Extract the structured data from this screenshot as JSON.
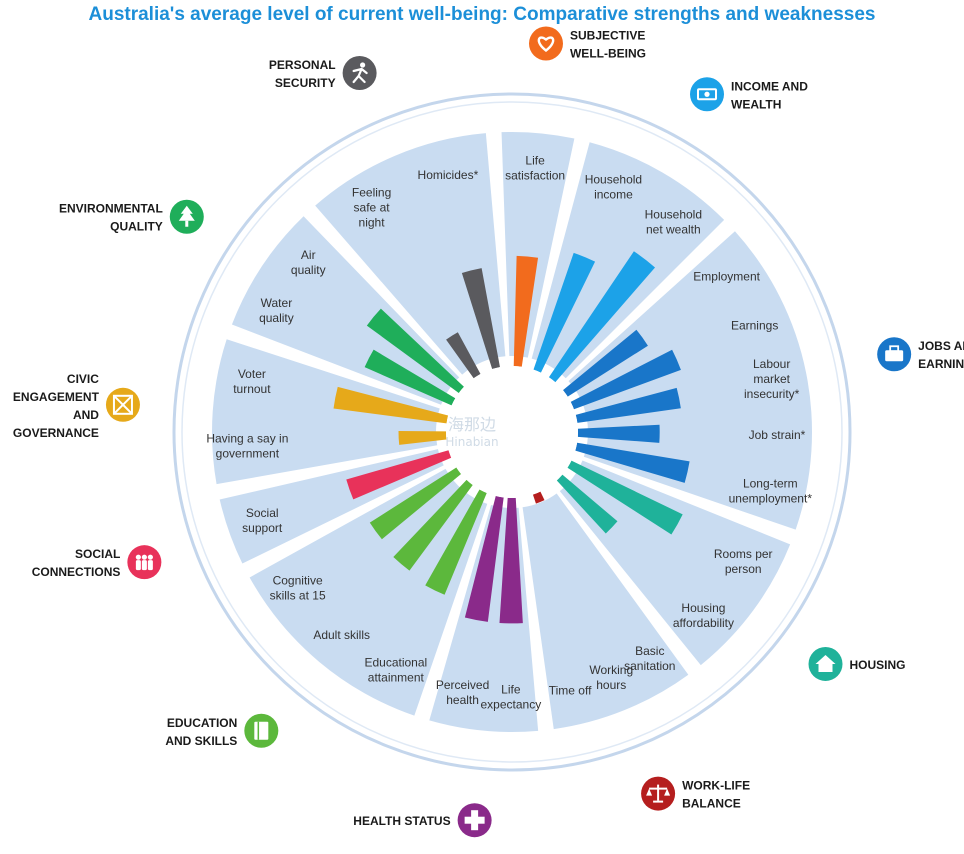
{
  "page": {
    "title": "Australia's average level of current well-being: Comparative strengths and weaknesses"
  },
  "watermark": {
    "line1": "海那边",
    "line2": "Hinabian"
  },
  "chart_data": {
    "type": "radial-bar",
    "title": "Australia's average level of current well-being: Comparative strengths and weaknesses",
    "value_scale": "relative strength, 0 (weakest) to 10 (strongest)",
    "dimensions": [
      {
        "name": "Subjective Well-Being",
        "label_lines": [
          "SUBJECTIVE",
          "WELL-BEING"
        ],
        "color": "#f26b1d",
        "icon": "heart-icon",
        "indicators": [
          {
            "name": "Life satisfaction",
            "label_lines": [
              "Life",
              "satisfaction"
            ],
            "value": 5.8
          }
        ]
      },
      {
        "name": "Income and Wealth",
        "label_lines": [
          "INCOME AND",
          "WEALTH"
        ],
        "color": "#1ca2e8",
        "icon": "money-icon",
        "indicators": [
          {
            "name": "Household income",
            "label_lines": [
              "Household",
              "income"
            ],
            "value": 6.5
          },
          {
            "name": "Household net wealth",
            "label_lines": [
              "Household",
              "net wealth"
            ],
            "value": 8.0
          }
        ]
      },
      {
        "name": "Jobs and Earnings",
        "label_lines": [
          "JOBS AND",
          "EARNINGS"
        ],
        "color": "#1976c9",
        "icon": "briefcase-icon",
        "indicators": [
          {
            "name": "Employment",
            "label_lines": [
              "Employment"
            ],
            "value": 5.0
          },
          {
            "name": "Earnings",
            "label_lines": [
              "Earnings"
            ],
            "value": 6.0
          },
          {
            "name": "Labour market insecurity*",
            "label_lines": [
              "Labour",
              "market",
              "insecurity*"
            ],
            "value": 5.5
          },
          {
            "name": "Job strain*",
            "label_lines": [
              "Job strain*"
            ],
            "value": 4.3
          },
          {
            "name": "Long-term unemployment*",
            "label_lines": [
              "Long-term",
              "unemployment*"
            ],
            "value": 6.0
          }
        ]
      },
      {
        "name": "Housing",
        "label_lines": [
          "HOUSING"
        ],
        "color": "#1fb29a",
        "icon": "house-icon",
        "indicators": [
          {
            "name": "Rooms per person",
            "label_lines": [
              "Rooms per",
              "person"
            ],
            "value": 6.5
          },
          {
            "name": "Housing affordability",
            "label_lines": [
              "Housing",
              "affordability"
            ],
            "value": 3.8
          }
        ]
      },
      {
        "name": "Work-Life Balance",
        "label_lines": [
          "WORK-LIFE",
          "BALANCE"
        ],
        "color": "#b51e1e",
        "icon": "scales-icon",
        "indicators": [
          {
            "name": "Basic sanitation",
            "label_lines": [
              "Basic",
              "sanitation"
            ],
            "value": 0
          },
          {
            "name": "Working hours",
            "label_lines": [
              "Working",
              "hours"
            ],
            "value": 0.5
          },
          {
            "name": "Time off",
            "label_lines": [
              "Time off"
            ],
            "value": 0
          }
        ]
      },
      {
        "name": "Health Status",
        "label_lines": [
          "HEALTH STATUS"
        ],
        "color": "#8a2a8a",
        "icon": "health-cross-icon",
        "indicators": [
          {
            "name": "Life expectancy",
            "label_lines": [
              "Life",
              "expectancy"
            ],
            "value": 6.6
          },
          {
            "name": "Perceived health",
            "label_lines": [
              "Perceived",
              "health"
            ],
            "value": 6.6
          }
        ]
      },
      {
        "name": "Education and Skills",
        "label_lines": [
          "EDUCATION",
          "AND SKILLS"
        ],
        "color": "#5cb83c",
        "icon": "book-icon",
        "indicators": [
          {
            "name": "Educational attainment",
            "label_lines": [
              "Educational",
              "attainment"
            ],
            "value": 5.8
          },
          {
            "name": "Adult skills",
            "label_lines": [
              "Adult skills"
            ],
            "value": 5.6
          },
          {
            "name": "Cognitive skills at 15",
            "label_lines": [
              "Cognitive",
              "skills at 15"
            ],
            "value": 5.4
          }
        ]
      },
      {
        "name": "Social Connections",
        "label_lines": [
          "SOCIAL",
          "CONNECTIONS"
        ],
        "color": "#e8325a",
        "icon": "people-icon",
        "indicators": [
          {
            "name": "Social support",
            "label_lines": [
              "Social",
              "support"
            ],
            "value": 5.6
          }
        ]
      },
      {
        "name": "Civic Engagement and Governance",
        "label_lines": [
          "CIVIC",
          "ENGAGEMENT",
          "AND",
          "GOVERNANCE"
        ],
        "color": "#e6a91a",
        "icon": "ballot-icon",
        "indicators": [
          {
            "name": "Having a say in government",
            "label_lines": [
              "Having a say in",
              "government"
            ],
            "value": 2.5
          },
          {
            "name": "Voter turnout",
            "label_lines": [
              "Voter",
              "turnout"
            ],
            "value": 6.0
          }
        ]
      },
      {
        "name": "Environmental Quality",
        "label_lines": [
          "ENVIRONMENTAL",
          "QUALITY"
        ],
        "color": "#1fae5a",
        "icon": "tree-icon",
        "indicators": [
          {
            "name": "Water quality",
            "label_lines": [
              "Water",
              "quality"
            ],
            "value": 5.0
          },
          {
            "name": "Air quality",
            "label_lines": [
              "Air",
              "quality"
            ],
            "value": 6.0
          }
        ]
      },
      {
        "name": "Personal Security",
        "label_lines": [
          "PERSONAL",
          "SECURITY"
        ],
        "color": "#5a5a5e",
        "icon": "running-person-icon",
        "indicators": [
          {
            "name": "Feeling safe at night",
            "label_lines": [
              "Feeling",
              "safe at",
              "night"
            ],
            "value": 2.5
          },
          {
            "name": "Homicides*",
            "label_lines": [
              "Homicides*"
            ],
            "value": 5.3
          }
        ]
      }
    ]
  }
}
